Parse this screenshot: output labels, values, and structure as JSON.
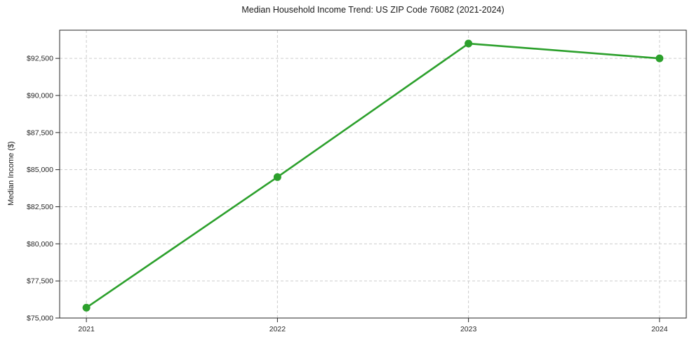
{
  "chart_data": {
    "type": "line",
    "title": "Median Household Income Trend: US ZIP Code 76082 (2021-2024)",
    "xlabel": "",
    "ylabel": "Median Income ($)",
    "x": [
      2021,
      2022,
      2023,
      2024
    ],
    "xtick_labels": [
      "2021",
      "2022",
      "2023",
      "2024"
    ],
    "series": [
      {
        "values": [
          75700,
          84500,
          93500,
          92500
        ],
        "color": "#2ca02c",
        "marker": "circle",
        "marker_size": 11,
        "line_width": 2.6
      }
    ],
    "yticks": [
      75000,
      77500,
      80000,
      82500,
      85000,
      87500,
      90000,
      92500
    ],
    "ytick_labels": [
      "$75,000",
      "$77,500",
      "$80,000",
      "$82,500",
      "$85,000",
      "$87,500",
      "$90,000",
      "$92,500"
    ],
    "ylim": [
      75000,
      94400
    ],
    "xlim": [
      2020.86,
      2024.14
    ],
    "grid": true,
    "grid_style": "dashed",
    "grid_color": "#cccccc",
    "axis_color": "#262626",
    "text_color": "#262626",
    "background": "#ffffff",
    "legend_position": "none"
  }
}
